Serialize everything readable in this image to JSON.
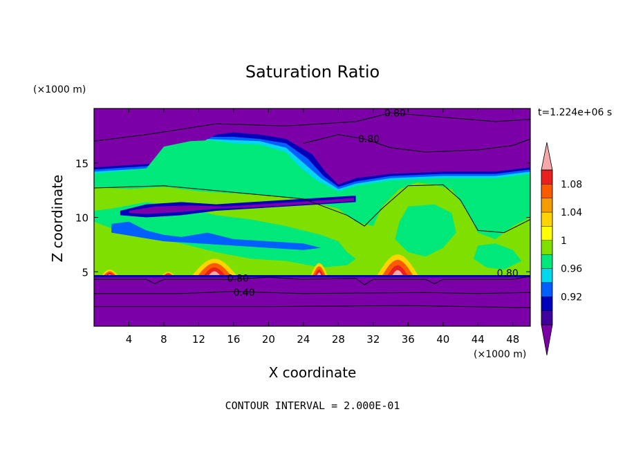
{
  "chart_data": {
    "type": "contour",
    "title": "Saturation Ratio",
    "xlabel": "X coordinate",
    "ylabel": "Z coordinate",
    "x_unit": "(×1000 m)",
    "y_unit": "(×1000 m)",
    "time_label": "t=1.224e+06 s",
    "footer": "CONTOUR INTERVAL = 2.000E-01",
    "xlim": [
      0,
      50
    ],
    "ylim": [
      0,
      20
    ],
    "x_ticks": [
      4,
      8,
      12,
      16,
      20,
      24,
      28,
      32,
      36,
      40,
      44,
      48
    ],
    "y_ticks": [
      5,
      10,
      15
    ],
    "contour_labels": [
      {
        "text": "0.80",
        "x": 34.5,
        "y": 19.6
      },
      {
        "text": "0.80",
        "x": 31.5,
        "y": 17.2
      },
      {
        "text": "0.80",
        "x": 16.5,
        "y": 4.4
      },
      {
        "text": "0.40",
        "x": 17.2,
        "y": 3.1
      },
      {
        "text": "0.80",
        "x": 47.4,
        "y": 4.9
      }
    ],
    "colorbar": {
      "labels": [
        "1.08",
        "1.04",
        "1",
        "0.96",
        "0.92"
      ],
      "colors": [
        "#f7a8a8",
        "#e8201f",
        "#fa5a00",
        "#f59c00",
        "#ffd400",
        "#ffff00",
        "#7fe000",
        "#00e87a",
        "#00d8f0",
        "#0060ff",
        "#0000b8",
        "#40009e",
        "#7b00a8"
      ]
    },
    "regions": {
      "upper_dry": "#7b00a8",
      "lower_dry": "#7b00a8",
      "band_green": "#00e87a",
      "band_lime": "#7fe000",
      "band_cyan": "#00d8f0",
      "band_blue": "#0060ff",
      "band_navy": "#0000b8",
      "hot_orange": "#fa5a00",
      "hot_yellow": "#ffd400",
      "hot_red": "#e8201f",
      "hot_pink": "#f7a8a8"
    }
  }
}
